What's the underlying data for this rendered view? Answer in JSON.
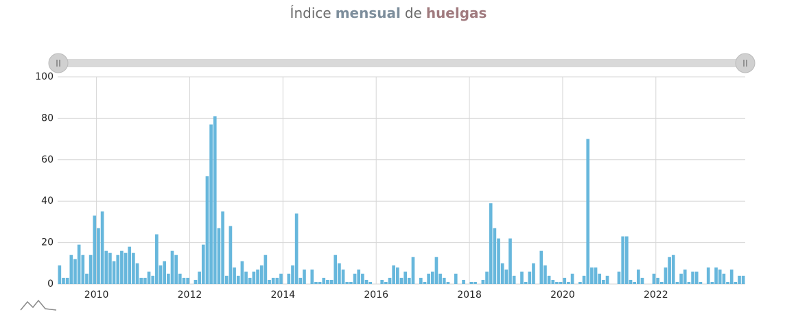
{
  "chart_data": {
    "type": "bar",
    "title_parts": [
      "Índice",
      "mensual",
      "de",
      "huelgas"
    ],
    "title_colors": [
      "#6b6b6b",
      "#7d8e9c",
      "#6b6b6b",
      "#a07a7e"
    ],
    "categories": [
      null,
      null,
      null,
      null,
      null,
      null,
      null,
      null,
      null,
      null,
      "2010",
      null,
      null,
      null,
      null,
      null,
      null,
      null,
      null,
      null,
      null,
      null,
      null,
      null,
      null,
      null,
      null,
      null,
      null,
      null,
      null,
      null,
      null,
      null,
      "2012",
      null,
      null,
      null,
      null,
      null,
      null,
      null,
      null,
      null,
      null,
      null,
      null,
      null,
      null,
      null,
      null,
      null,
      null,
      null,
      null,
      null,
      null,
      null,
      "2014",
      null,
      null,
      null,
      null,
      null,
      null,
      null,
      null,
      null,
      null,
      null,
      null,
      null,
      null,
      null,
      null,
      null,
      null,
      null,
      null,
      null,
      null,
      null,
      "2016",
      null,
      null,
      null,
      null,
      null,
      null,
      null,
      null,
      null,
      null,
      null,
      null,
      null,
      null,
      null,
      null,
      null,
      null,
      null,
      null,
      null,
      null,
      null,
      "2018",
      null,
      null,
      null,
      null,
      null,
      null,
      null,
      null,
      null,
      null,
      null,
      null,
      null,
      null,
      null,
      null,
      null,
      null,
      null,
      null,
      null,
      null,
      null,
      "2020",
      null,
      null,
      null,
      null,
      null,
      null,
      null,
      null,
      null,
      null,
      null,
      null,
      null,
      null,
      null,
      null,
      null,
      null,
      null,
      null,
      null,
      null,
      null,
      "2022",
      null,
      null,
      null,
      null,
      null,
      null,
      null,
      null,
      null,
      null,
      null,
      null,
      null,
      null,
      null,
      null,
      null,
      null,
      null,
      null,
      null,
      null
    ],
    "values": [
      9,
      3,
      3,
      14,
      12,
      19,
      14,
      5,
      14,
      33,
      27,
      35,
      16,
      15,
      11,
      14,
      16,
      15,
      18,
      15,
      10,
      3,
      3,
      6,
      4,
      24,
      9,
      11,
      5,
      16,
      14,
      5,
      3,
      3,
      0,
      2,
      6,
      19,
      52,
      77,
      81,
      27,
      35,
      4,
      28,
      8,
      4,
      11,
      6,
      3,
      6,
      7,
      9,
      14,
      2,
      3,
      3,
      5,
      0,
      5,
      9,
      34,
      3,
      7,
      0,
      7,
      1,
      1,
      3,
      2,
      2,
      14,
      10,
      7,
      1,
      1,
      5,
      7,
      5,
      2,
      1,
      0,
      0,
      2,
      1,
      3,
      9,
      8,
      3,
      6,
      3,
      13,
      0,
      3,
      1,
      5,
      6,
      13,
      5,
      3,
      1,
      0,
      5,
      0,
      2,
      0,
      1,
      1,
      0,
      2,
      6,
      39,
      27,
      22,
      10,
      7,
      22,
      4,
      0,
      6,
      1,
      6,
      10,
      0,
      16,
      9,
      4,
      2,
      1,
      1,
      3,
      1,
      5,
      0,
      1,
      4,
      70,
      8,
      8,
      5,
      2,
      4,
      0,
      0,
      6,
      23,
      23,
      2,
      1,
      7,
      3,
      0,
      0,
      5,
      3,
      1,
      8,
      13,
      14,
      1,
      5,
      7,
      1,
      6,
      6,
      1,
      0,
      8,
      1,
      8,
      7,
      5,
      1,
      7,
      1,
      4,
      4
    ],
    "color": "#67b7dc",
    "ylim": [
      0,
      100
    ],
    "yticks": [
      0,
      20,
      40,
      60,
      80,
      100
    ],
    "grid": true
  }
}
